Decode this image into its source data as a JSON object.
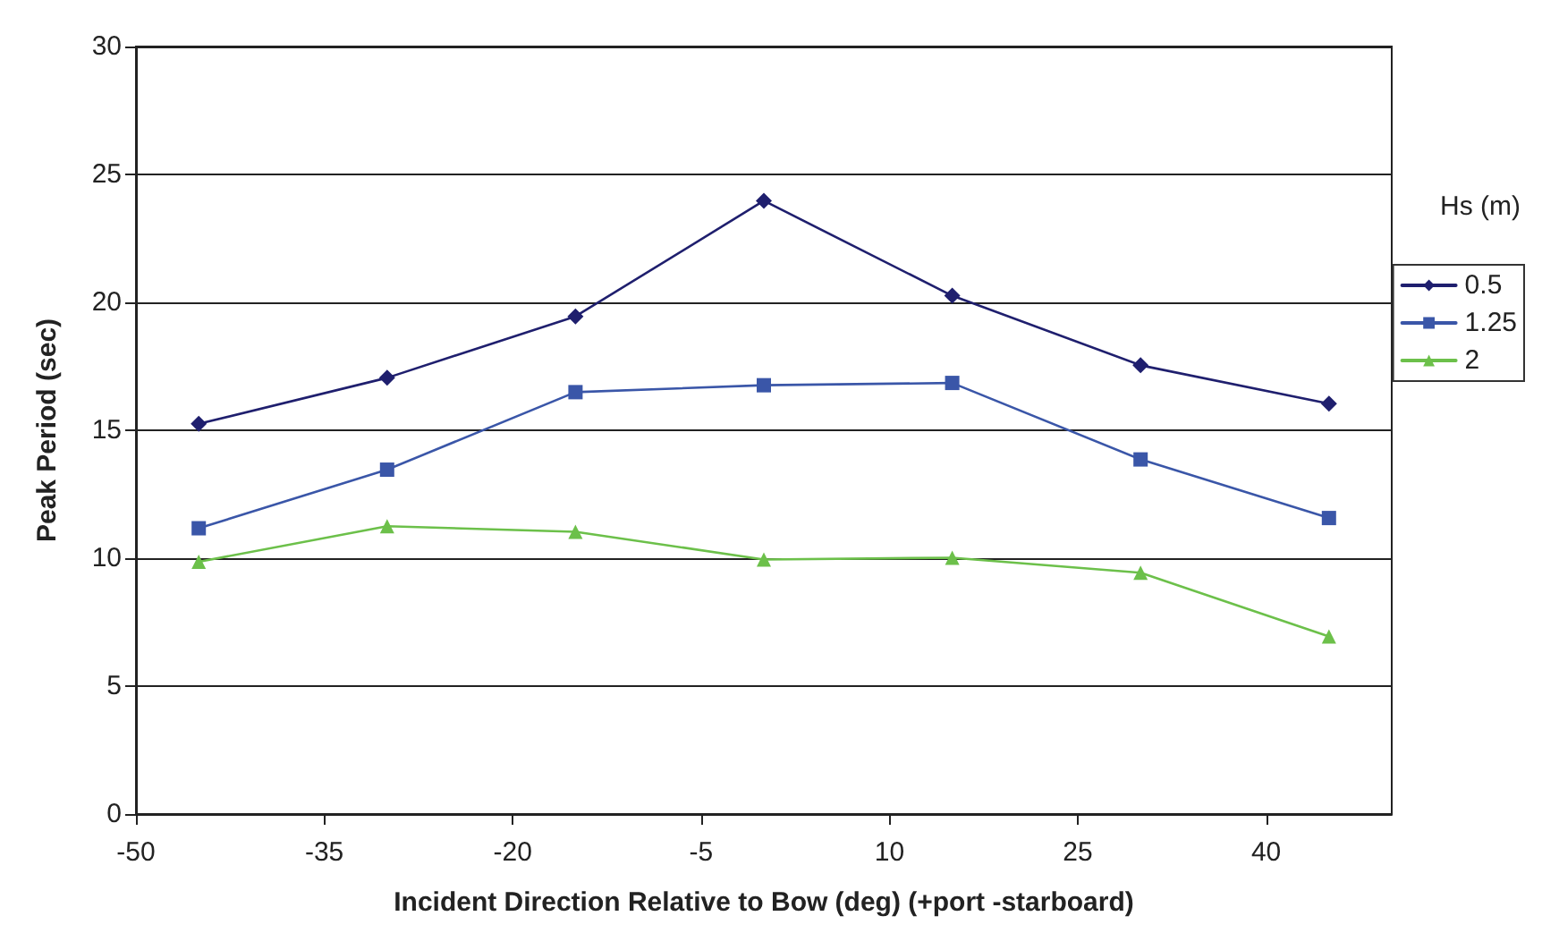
{
  "chart_data": {
    "type": "line",
    "xlabel": "Incident Direction Relative to Bow (deg) (+port -starboard)",
    "ylabel": "Peak Period (sec)",
    "legend_title": "Hs (m)",
    "x": [
      -45,
      -30,
      -15,
      0,
      15,
      30,
      45
    ],
    "series": [
      {
        "name": "0.5",
        "color": "#1f1f6e",
        "marker": "diamond",
        "values": [
          15.25,
          17.05,
          19.45,
          23.97,
          20.26,
          17.54,
          16.04
        ]
      },
      {
        "name": "1.25",
        "color": "#3a56a8",
        "marker": "square",
        "values": [
          11.17,
          13.46,
          16.49,
          16.76,
          16.85,
          13.86,
          11.57
        ]
      },
      {
        "name": "2",
        "color": "#6cc04a",
        "marker": "triangle",
        "values": [
          9.86,
          11.25,
          11.03,
          9.95,
          10.02,
          9.43,
          6.94
        ]
      }
    ],
    "xlim": [
      -50,
      50
    ],
    "xticks": [
      -50,
      -35,
      -20,
      -5,
      10,
      25,
      40
    ],
    "ylim": [
      0,
      30
    ],
    "yticks": [
      0,
      5,
      10,
      15,
      20,
      25,
      30
    ],
    "grid": "y",
    "legend": "right"
  }
}
